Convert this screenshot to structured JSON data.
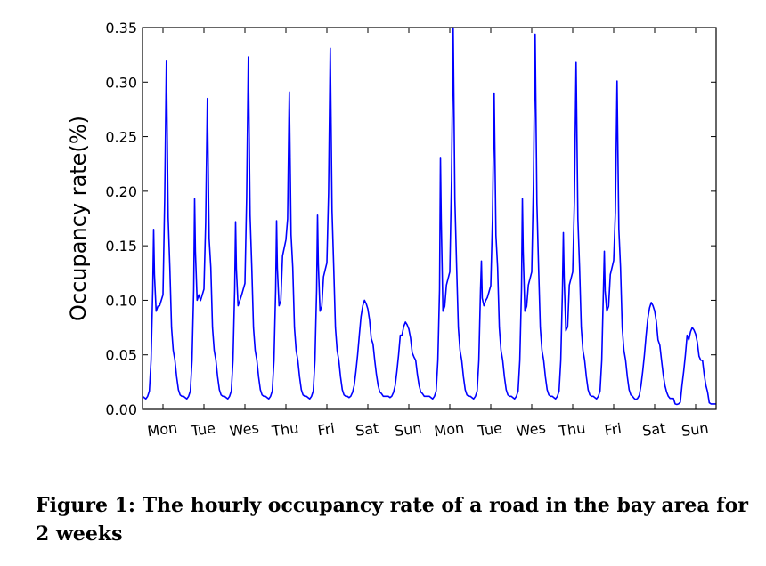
{
  "caption": "Figure 1: The hourly occupancy rate of a road in the bay area for 2 weeks",
  "colors": {
    "line": "#0000ff",
    "axis": "#000000"
  },
  "chart_data": {
    "type": "line",
    "title": "",
    "xlabel": "",
    "ylabel": "Occupancy rate(%)",
    "ylim": [
      0,
      0.35
    ],
    "xlim": [
      0,
      336
    ],
    "yticks": [
      0.0,
      0.05,
      0.1,
      0.15,
      0.2,
      0.25,
      0.3,
      0.35
    ],
    "ytick_labels": [
      "0.00",
      "0.05",
      "0.10",
      "0.15",
      "0.20",
      "0.25",
      "0.30",
      "0.35"
    ],
    "xticks": [
      {
        "label": "Mon",
        "x": 12
      },
      {
        "label": "Tue",
        "x": 36
      },
      {
        "label": "Wes",
        "x": 60
      },
      {
        "label": "Thu",
        "x": 84
      },
      {
        "label": "Fri",
        "x": 108
      },
      {
        "label": "Sat",
        "x": 132
      },
      {
        "label": "Sun",
        "x": 156
      },
      {
        "label": "Mon",
        "x": 180
      },
      {
        "label": "Tue",
        "x": 204
      },
      {
        "label": "Wes",
        "x": 228
      },
      {
        "label": "Thu",
        "x": 252
      },
      {
        "label": "Fri",
        "x": 276
      },
      {
        "label": "Sat",
        "x": 300
      },
      {
        "label": "Sun",
        "x": 324
      }
    ],
    "series": [
      {
        "name": "occupancy",
        "days": [
          {
            "base": 0.012,
            "am": 0.165,
            "mid": 0.09,
            "mid2": 0.1,
            "pm": 0.32,
            "eve": 0.06,
            "type": "weekday"
          },
          {
            "base": 0.012,
            "am": 0.193,
            "mid": 0.1,
            "mid2": 0.105,
            "pm": 0.285,
            "eve": 0.06,
            "type": "weekday"
          },
          {
            "base": 0.012,
            "am": 0.172,
            "mid": 0.095,
            "mid2": 0.11,
            "pm": 0.323,
            "eve": 0.06,
            "type": "weekday"
          },
          {
            "base": 0.012,
            "am": 0.173,
            "mid": 0.095,
            "mid2": 0.148,
            "pm": 0.291,
            "eve": 0.06,
            "type": "weekday"
          },
          {
            "base": 0.012,
            "am": 0.178,
            "mid": 0.09,
            "mid2": 0.128,
            "pm": 0.331,
            "eve": 0.06,
            "type": "weekday"
          },
          {
            "base": 0.012,
            "peak": 0.1,
            "type": "weekend"
          },
          {
            "base": 0.012,
            "peak": 0.08,
            "type": "weekend"
          },
          {
            "base": 0.012,
            "am": 0.231,
            "mid": 0.09,
            "mid2": 0.12,
            "pm": 0.35,
            "eve": 0.06,
            "type": "weekday"
          },
          {
            "base": 0.012,
            "am": 0.136,
            "mid": 0.095,
            "mid2": 0.108,
            "pm": 0.29,
            "eve": 0.06,
            "type": "weekday"
          },
          {
            "base": 0.012,
            "am": 0.193,
            "mid": 0.09,
            "mid2": 0.12,
            "pm": 0.344,
            "eve": 0.06,
            "type": "weekday"
          },
          {
            "base": 0.012,
            "am": 0.162,
            "mid": 0.072,
            "mid2": 0.12,
            "pm": 0.318,
            "eve": 0.06,
            "type": "weekday"
          },
          {
            "base": 0.012,
            "am": 0.145,
            "mid": 0.09,
            "mid2": 0.13,
            "pm": 0.301,
            "eve": 0.06,
            "type": "weekday"
          },
          {
            "base": 0.01,
            "peak": 0.098,
            "type": "weekend"
          },
          {
            "base": 0.005,
            "peak": 0.075,
            "type": "weekend"
          }
        ]
      }
    ],
    "grid": false,
    "legend": "none"
  }
}
